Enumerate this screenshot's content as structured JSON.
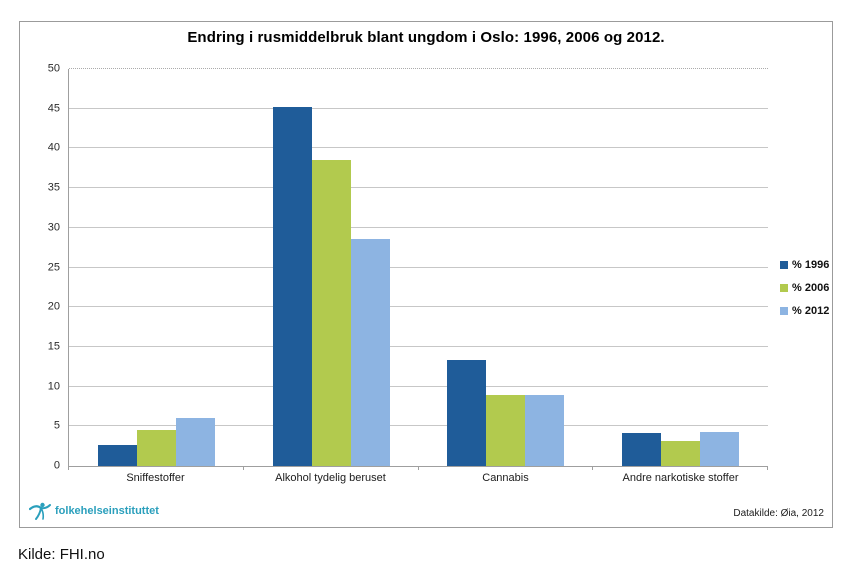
{
  "footer": {
    "kilde": "Kilde: FHI.no"
  },
  "chart_footer": {
    "logo_text": "folkehelseinstituttet",
    "datasource": "Datakilde: Øia, 2012"
  },
  "colors": {
    "series_1996": "#1f5c99",
    "series_2006": "#b2ca4e",
    "series_2012": "#8db4e2",
    "logo_teal": "#2a9fbc",
    "gridline": "#c7c7c7",
    "axis": "#9f9f9f"
  },
  "chart_data": {
    "type": "bar",
    "title": "Endring i rusmiddelbruk blant ungdom i Oslo: 1996, 2006 og 2012.",
    "categories": [
      "Sniffestoffer",
      "Alkohol tydelig beruset",
      "Cannabis",
      "Andre narkotiske stoffer"
    ],
    "series": [
      {
        "name": "% 1996",
        "color": "#1f5c99",
        "values": [
          2.6,
          45.2,
          13.4,
          4.1
        ]
      },
      {
        "name": "% 2006",
        "color": "#b2ca4e",
        "values": [
          4.5,
          38.5,
          9.0,
          3.1
        ]
      },
      {
        "name": "% 2012",
        "color": "#8db4e2",
        "values": [
          6.0,
          28.6,
          9.0,
          4.3
        ]
      }
    ],
    "xlabel": "",
    "ylabel": "",
    "ylim": [
      0,
      50
    ],
    "yticks": [
      0,
      5,
      10,
      15,
      20,
      25,
      30,
      35,
      40,
      45,
      50
    ],
    "grid": true,
    "legend_position": "right"
  }
}
